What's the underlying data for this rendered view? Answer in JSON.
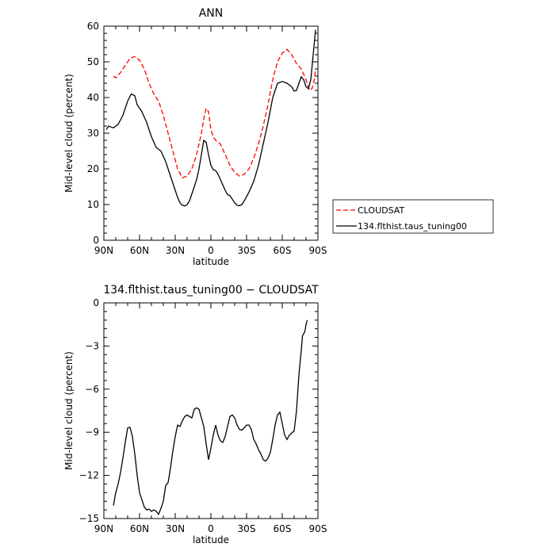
{
  "chart_data": [
    {
      "type": "line",
      "title": "ANN",
      "xlabel": "latitude",
      "ylabel": "Mid-level cloud (percent)",
      "xlim": [
        90,
        -90
      ],
      "ylim": [
        0,
        60
      ],
      "xticks": [
        90,
        60,
        30,
        0,
        -30,
        -60,
        -90
      ],
      "xtick_labels": [
        "90N",
        "60N",
        "30N",
        "0",
        "30S",
        "60S",
        "90S"
      ],
      "yticks": [
        0,
        10,
        20,
        30,
        40,
        50,
        60
      ],
      "ytick_labels": [
        "0",
        "10",
        "20",
        "30",
        "40",
        "50",
        "60"
      ],
      "legend_position": "right",
      "series": [
        {
          "name": "CLOUDSAT",
          "color": "#ff0000",
          "dash": "dashed",
          "points": [
            [
              82,
              46
            ],
            [
              80,
              45.5
            ],
            [
              76,
              47
            ],
            [
              72,
              49
            ],
            [
              68,
              51
            ],
            [
              64,
              51.5
            ],
            [
              60,
              50.5
            ],
            [
              56,
              48
            ],
            [
              52,
              44
            ],
            [
              48,
              41
            ],
            [
              44,
              39
            ],
            [
              40,
              35
            ],
            [
              36,
              30
            ],
            [
              32,
              25
            ],
            [
              28,
              20
            ],
            [
              24,
              17.5
            ],
            [
              20,
              18
            ],
            [
              16,
              20
            ],
            [
              12,
              24
            ],
            [
              8,
              30
            ],
            [
              6,
              34
            ],
            [
              4,
              37
            ],
            [
              2,
              36
            ],
            [
              0,
              31
            ],
            [
              -2,
              29
            ],
            [
              -4,
              28
            ],
            [
              -8,
              27
            ],
            [
              -12,
              24
            ],
            [
              -16,
              21
            ],
            [
              -20,
              19
            ],
            [
              -24,
              18
            ],
            [
              -28,
              18.5
            ],
            [
              -32,
              20
            ],
            [
              -36,
              23
            ],
            [
              -40,
              27
            ],
            [
              -44,
              32
            ],
            [
              -48,
              38
            ],
            [
              -52,
              45
            ],
            [
              -56,
              50
            ],
            [
              -60,
              52.5
            ],
            [
              -64,
              53.5
            ],
            [
              -68,
              52
            ],
            [
              -72,
              49.5
            ],
            [
              -76,
              48
            ],
            [
              -80,
              45
            ],
            [
              -83,
              42
            ],
            [
              -85,
              42.5
            ],
            [
              -87,
              45
            ],
            [
              -88,
              48
            ]
          ]
        },
        {
          "name": "134.flthist.taus_tuning00",
          "color": "#000000",
          "dash": "solid",
          "points": [
            [
              88,
              31
            ],
            [
              86,
              32
            ],
            [
              82,
              31.5
            ],
            [
              78,
              32.5
            ],
            [
              74,
              35
            ],
            [
              70,
              39
            ],
            [
              67,
              41
            ],
            [
              64,
              40.5
            ],
            [
              62,
              38
            ],
            [
              58,
              36
            ],
            [
              54,
              33
            ],
            [
              50,
              29
            ],
            [
              46,
              26
            ],
            [
              42,
              25
            ],
            [
              38,
              22
            ],
            [
              34,
              18
            ],
            [
              32,
              16
            ],
            [
              30,
              14
            ],
            [
              28,
              12
            ],
            [
              26,
              10.5
            ],
            [
              24,
              9.8
            ],
            [
              22,
              9.6
            ],
            [
              20,
              10
            ],
            [
              18,
              11
            ],
            [
              16,
              13
            ],
            [
              14,
              15
            ],
            [
              12,
              17
            ],
            [
              10,
              20
            ],
            [
              8,
              24
            ],
            [
              6,
              28
            ],
            [
              4,
              27.5
            ],
            [
              2,
              24
            ],
            [
              0,
              21
            ],
            [
              -2,
              19.8
            ],
            [
              -4,
              19.5
            ],
            [
              -6,
              18.5
            ],
            [
              -8,
              17
            ],
            [
              -10,
              15.5
            ],
            [
              -12,
              14
            ],
            [
              -14,
              12.8
            ],
            [
              -16,
              12.5
            ],
            [
              -18,
              11.5
            ],
            [
              -20,
              10.5
            ],
            [
              -22,
              9.8
            ],
            [
              -24,
              9.7
            ],
            [
              -26,
              10
            ],
            [
              -28,
              11
            ],
            [
              -32,
              13.5
            ],
            [
              -36,
              16.5
            ],
            [
              -40,
              21
            ],
            [
              -44,
              27
            ],
            [
              -48,
              33
            ],
            [
              -52,
              40
            ],
            [
              -56,
              44
            ],
            [
              -60,
              44.5
            ],
            [
              -64,
              44
            ],
            [
              -68,
              43
            ],
            [
              -70,
              41.8
            ],
            [
              -72,
              42
            ],
            [
              -74,
              44
            ],
            [
              -76,
              45.8
            ],
            [
              -78,
              45
            ],
            [
              -80,
              43
            ],
            [
              -82,
              42.5
            ],
            [
              -84,
              45
            ],
            [
              -86,
              52
            ],
            [
              -88,
              59
            ]
          ]
        }
      ]
    },
    {
      "type": "line",
      "title": "134.flthist.taus_tuning00 − CLOUDSAT",
      "xlabel": "latitude",
      "ylabel": "Mid-level cloud (percent)",
      "xlim": [
        90,
        -90
      ],
      "ylim": [
        -15,
        0
      ],
      "xticks": [
        90,
        60,
        30,
        0,
        -30,
        -60,
        -90
      ],
      "xtick_labels": [
        "90N",
        "60N",
        "30N",
        "0",
        "30S",
        "60S",
        "90S"
      ],
      "yticks": [
        -15,
        -12,
        -9,
        -6,
        -3,
        0
      ],
      "ytick_labels": [
        "−15",
        "−12",
        "−9",
        "−6",
        "−3",
        "0"
      ],
      "series": [
        {
          "color": "#000000",
          "dash": "solid",
          "points": [
            [
              82,
              -14.1
            ],
            [
              80,
              -13.2
            ],
            [
              78,
              -12.6
            ],
            [
              76,
              -11.8
            ],
            [
              74,
              -10.8
            ],
            [
              72,
              -9.7
            ],
            [
              70,
              -8.7
            ],
            [
              68,
              -8.65
            ],
            [
              66,
              -9.3
            ],
            [
              64,
              -10.5
            ],
            [
              62,
              -12
            ],
            [
              60,
              -13.2
            ],
            [
              58,
              -13.7
            ],
            [
              56,
              -14.2
            ],
            [
              54,
              -14.4
            ],
            [
              52,
              -14.35
            ],
            [
              50,
              -14.5
            ],
            [
              48,
              -14.4
            ],
            [
              46,
              -14.5
            ],
            [
              44,
              -14.7
            ],
            [
              42,
              -14.3
            ],
            [
              40,
              -13.8
            ],
            [
              38,
              -12.7
            ],
            [
              36,
              -12.5
            ],
            [
              34,
              -11.5
            ],
            [
              32,
              -10.3
            ],
            [
              30,
              -9.3
            ],
            [
              28,
              -8.5
            ],
            [
              26,
              -8.6
            ],
            [
              24,
              -8.2
            ],
            [
              22,
              -7.9
            ],
            [
              20,
              -7.8
            ],
            [
              18,
              -7.9
            ],
            [
              16,
              -8
            ],
            [
              14,
              -7.4
            ],
            [
              12,
              -7.3
            ],
            [
              10,
              -7.4
            ],
            [
              8,
              -8
            ],
            [
              6,
              -8.6
            ],
            [
              4,
              -9.8
            ],
            [
              2,
              -10.9
            ],
            [
              0,
              -10.1
            ],
            [
              -2,
              -9.2
            ],
            [
              -4,
              -8.5
            ],
            [
              -6,
              -9.2
            ],
            [
              -8,
              -9.6
            ],
            [
              -10,
              -9.7
            ],
            [
              -12,
              -9.3
            ],
            [
              -14,
              -8.6
            ],
            [
              -16,
              -7.9
            ],
            [
              -18,
              -7.8
            ],
            [
              -20,
              -8
            ],
            [
              -22,
              -8.5
            ],
            [
              -24,
              -8.8
            ],
            [
              -26,
              -8.85
            ],
            [
              -28,
              -8.7
            ],
            [
              -30,
              -8.5
            ],
            [
              -32,
              -8.5
            ],
            [
              -34,
              -8.8
            ],
            [
              -36,
              -9.5
            ],
            [
              -38,
              -9.8
            ],
            [
              -40,
              -10.2
            ],
            [
              -42,
              -10.5
            ],
            [
              -44,
              -10.9
            ],
            [
              -46,
              -11
            ],
            [
              -48,
              -10.8
            ],
            [
              -50,
              -10.4
            ],
            [
              -52,
              -9.5
            ],
            [
              -54,
              -8.5
            ],
            [
              -56,
              -7.8
            ],
            [
              -58,
              -7.6
            ],
            [
              -60,
              -8.4
            ],
            [
              -62,
              -9.2
            ],
            [
              -64,
              -9.5
            ],
            [
              -66,
              -9.2
            ],
            [
              -68,
              -9.05
            ],
            [
              -70,
              -8.9
            ],
            [
              -72,
              -7.5
            ],
            [
              -74,
              -5
            ],
            [
              -76,
              -3.3
            ],
            [
              -77,
              -2.3
            ],
            [
              -79,
              -2
            ],
            [
              -80,
              -1.5
            ],
            [
              -81,
              -1.2
            ]
          ]
        }
      ]
    }
  ]
}
